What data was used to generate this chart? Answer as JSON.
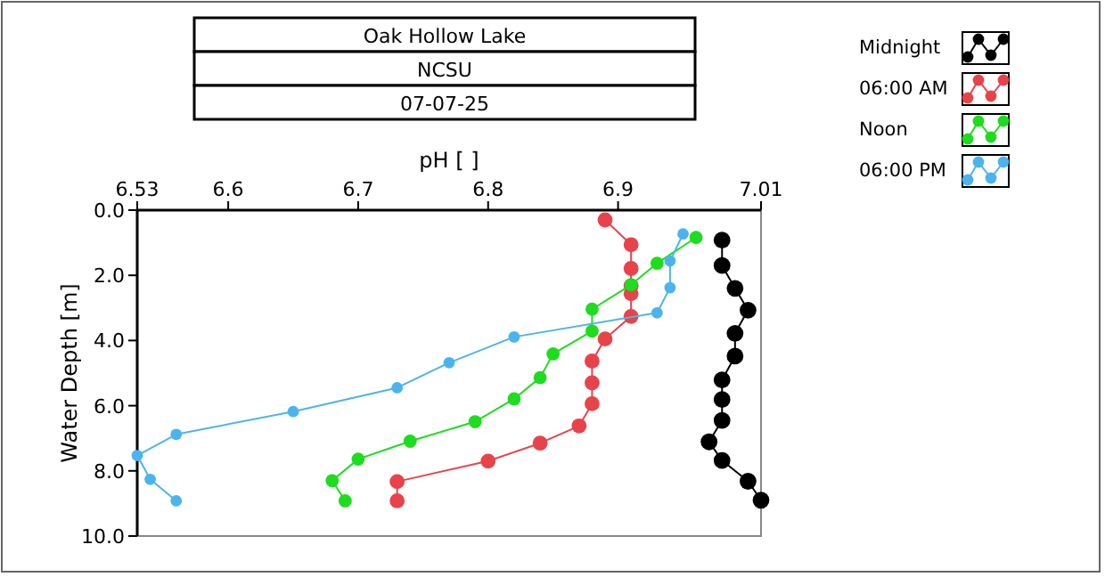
{
  "chart_data": {
    "type": "line",
    "title": "Oak Hollow Lake",
    "subtitle": "NCSU",
    "annotations": [
      "07-07-25"
    ],
    "xlabel": "pH [ ]",
    "ylabel": "Water Depth [m]",
    "xlim": [
      6.53,
      7.01
    ],
    "xticks": [
      6.53,
      6.6,
      6.7,
      6.8,
      6.9,
      7.01
    ],
    "ylim": [
      10,
      0
    ],
    "yticks": [
      {
        "value": 0,
        "label": "0.0"
      },
      {
        "value": 2,
        "label": "2.0"
      },
      {
        "value": 4,
        "label": "4.0"
      },
      {
        "value": 6,
        "label": "6.0"
      },
      {
        "value": 8,
        "label": "8.0"
      },
      {
        "value": 10,
        "label": "10.0"
      }
    ],
    "grid": false,
    "legend": "top right",
    "marker": "circle",
    "line_style": "solid",
    "series": [
      {
        "name": "Midnight",
        "color": "#000000",
        "x": [
          6.98,
          6.98,
          6.99,
          7.0,
          6.99,
          6.99,
          6.98,
          6.98,
          6.98,
          6.97,
          6.98,
          7.0,
          7.01
        ],
        "values": [
          0.92,
          1.7,
          2.4,
          3.07,
          3.78,
          4.48,
          5.21,
          5.81,
          6.45,
          7.11,
          7.68,
          8.32,
          8.9
        ]
      },
      {
        "name": "06:00 AM",
        "color": "#e8434a",
        "x": [
          6.89,
          6.91,
          6.91,
          6.91,
          6.91,
          6.91,
          6.89,
          6.88,
          6.88,
          6.88,
          6.87,
          6.84,
          6.8,
          6.73,
          6.73
        ],
        "values": [
          0.3,
          1.06,
          1.79,
          2.32,
          2.56,
          3.26,
          3.95,
          4.63,
          5.3,
          5.94,
          6.62,
          7.15,
          7.7,
          8.33,
          8.92
        ]
      },
      {
        "name": "Noon",
        "color": "#1edc1e",
        "x": [
          6.96,
          6.93,
          6.91,
          6.88,
          6.88,
          6.85,
          6.84,
          6.82,
          6.79,
          6.74,
          6.7,
          6.68,
          6.69
        ],
        "values": [
          0.84,
          1.63,
          2.29,
          3.04,
          3.71,
          4.41,
          5.14,
          5.79,
          6.49,
          7.09,
          7.64,
          8.3,
          8.92
        ]
      },
      {
        "name": "06:00 PM",
        "color": "#4cb4ec",
        "x": [
          6.95,
          6.94,
          6.94,
          6.93,
          6.82,
          6.77,
          6.73,
          6.65,
          6.56,
          6.53,
          6.54,
          6.56
        ],
        "values": [
          0.73,
          1.56,
          2.38,
          3.15,
          3.89,
          4.68,
          5.45,
          6.18,
          6.88,
          7.53,
          8.26,
          8.92
        ]
      }
    ]
  }
}
